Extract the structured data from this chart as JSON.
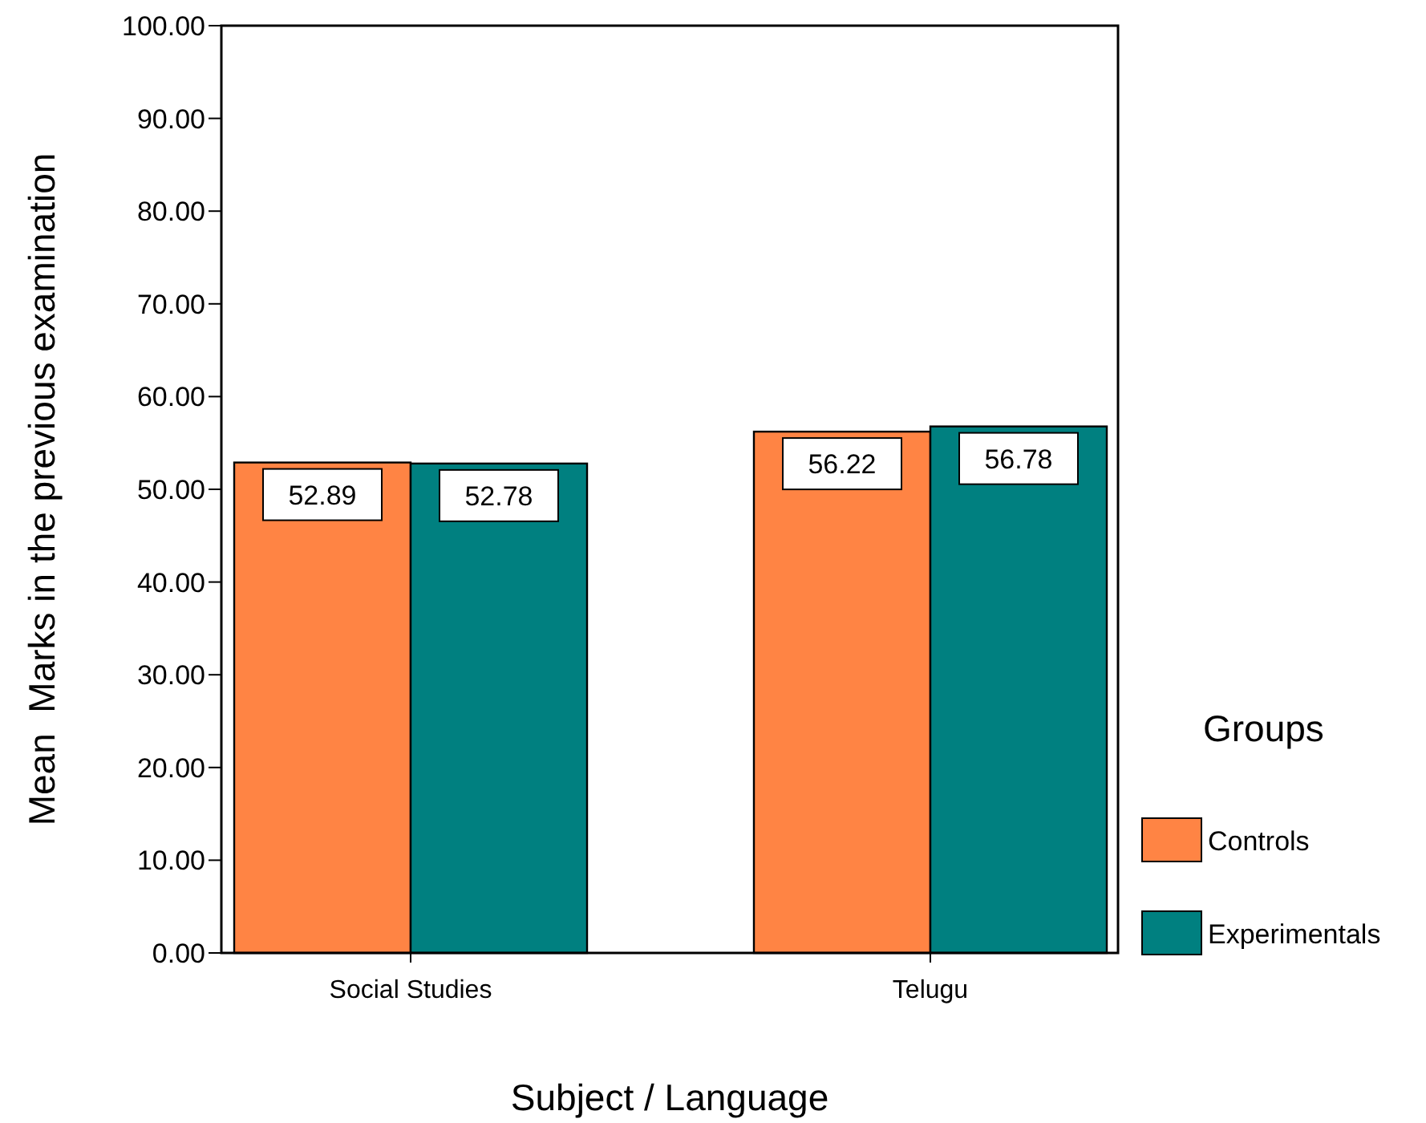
{
  "chart_data": {
    "type": "bar",
    "xlabel": "Subject / Language",
    "ylabel": "Mean  Marks in the previous examination",
    "legend_title": "Groups",
    "legend": "right",
    "categories": [
      "Social Studies",
      "Telugu"
    ],
    "series": [
      {
        "name": "Controls",
        "color": "#ff8444",
        "values": [
          52.89,
          56.22
        ]
      },
      {
        "name": "Experimentals",
        "color": "#008080",
        "values": [
          52.78,
          56.78
        ]
      }
    ],
    "ylim": [
      0,
      100
    ],
    "yticks": [
      {
        "value": 0,
        "label": "0.00"
      },
      {
        "value": 10,
        "label": "10.00"
      },
      {
        "value": 20,
        "label": "20.00"
      },
      {
        "value": 30,
        "label": "30.00"
      },
      {
        "value": 40,
        "label": "40.00"
      },
      {
        "value": 50,
        "label": "50.00"
      },
      {
        "value": 60,
        "label": "60.00"
      },
      {
        "value": 70,
        "label": "70.00"
      },
      {
        "value": 80,
        "label": "80.00"
      },
      {
        "value": 90,
        "label": "90.00"
      },
      {
        "value": 100,
        "label": "100.00"
      }
    ],
    "data_labels": true
  }
}
